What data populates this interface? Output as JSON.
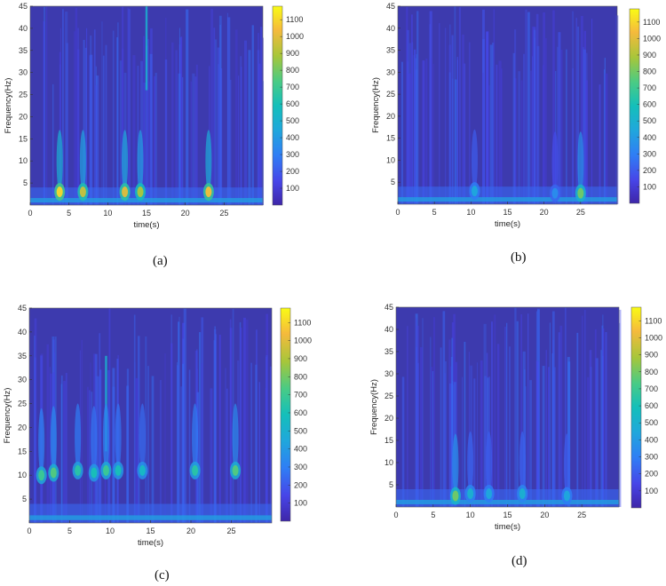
{
  "chart_data": [
    {
      "type": "heatmap",
      "panel_label": "(a)",
      "xlabel": "time(s)",
      "ylabel": "Frequency(Hz)",
      "xlim": [
        0,
        30
      ],
      "ylim": [
        0,
        45
      ],
      "x_ticks": [
        0,
        5,
        10,
        15,
        20,
        25
      ],
      "y_ticks": [
        5,
        10,
        15,
        20,
        25,
        30,
        35,
        40,
        45
      ],
      "colorbar": {
        "min": 0,
        "max": 1180,
        "ticks": [
          100,
          200,
          300,
          400,
          500,
          600,
          700,
          800,
          900,
          1000,
          1100
        ]
      },
      "colormap": "parula",
      "hotspots": [
        {
          "t": 3.8,
          "f": 3,
          "value": 1100
        },
        {
          "t": 6.8,
          "f": 3,
          "value": 950
        },
        {
          "t": 12.2,
          "f": 3,
          "value": 1000
        },
        {
          "t": 14.2,
          "f": 3,
          "value": 900
        },
        {
          "t": 23.0,
          "f": 3,
          "value": 1050
        }
      ]
    },
    {
      "type": "heatmap",
      "panel_label": "(b)",
      "xlabel": "time(s)",
      "ylabel": "Frequency(Hz)",
      "xlim": [
        0,
        30
      ],
      "ylim": [
        0,
        45
      ],
      "x_ticks": [
        0,
        5,
        10,
        15,
        20,
        25
      ],
      "y_ticks": [
        5,
        10,
        15,
        20,
        25,
        30,
        35,
        40,
        45
      ],
      "colorbar": {
        "min": 0,
        "max": 1180,
        "ticks": [
          100,
          200,
          300,
          400,
          500,
          600,
          700,
          800,
          900,
          1000,
          1100
        ]
      },
      "colormap": "parula",
      "hotspots": [
        {
          "t": 10.5,
          "f": 3,
          "value": 450
        },
        {
          "t": 25.0,
          "f": 2.5,
          "value": 800
        },
        {
          "t": 21.5,
          "f": 2.5,
          "value": 350
        }
      ]
    },
    {
      "type": "heatmap",
      "panel_label": "(c)",
      "xlabel": "time(s)",
      "ylabel": "Frequency(Hz)",
      "xlim": [
        0,
        30
      ],
      "ylim": [
        0,
        45
      ],
      "x_ticks": [
        0,
        5,
        10,
        15,
        20,
        25
      ],
      "y_ticks": [
        5,
        10,
        15,
        20,
        25,
        30,
        35,
        40,
        45
      ],
      "colorbar": {
        "min": 0,
        "max": 1180,
        "ticks": [
          100,
          200,
          300,
          400,
          500,
          600,
          700,
          800,
          900,
          1000,
          1100
        ]
      },
      "colormap": "parula",
      "hotspots": [
        {
          "t": 1.5,
          "f": 10,
          "value": 700
        },
        {
          "t": 3.0,
          "f": 10.5,
          "value": 750
        },
        {
          "t": 6.0,
          "f": 11,
          "value": 650
        },
        {
          "t": 8.0,
          "f": 10.5,
          "value": 600
        },
        {
          "t": 9.5,
          "f": 11,
          "value": 700
        },
        {
          "t": 11.0,
          "f": 11,
          "value": 600
        },
        {
          "t": 14.0,
          "f": 11,
          "value": 550
        },
        {
          "t": 20.5,
          "f": 11,
          "value": 650
        },
        {
          "t": 25.5,
          "f": 11,
          "value": 750
        }
      ]
    },
    {
      "type": "heatmap",
      "panel_label": "(d)",
      "xlabel": "time(s)",
      "ylabel": "Frequency(Hz)",
      "xlim": [
        0,
        30
      ],
      "ylim": [
        0,
        45
      ],
      "x_ticks": [
        0,
        5,
        10,
        15,
        20,
        25
      ],
      "y_ticks": [
        5,
        10,
        15,
        20,
        25,
        30,
        35,
        40,
        45
      ],
      "colorbar": {
        "min": 0,
        "max": 1180,
        "ticks": [
          100,
          200,
          300,
          400,
          500,
          600,
          700,
          800,
          900,
          1000,
          1100
        ]
      },
      "colormap": "parula",
      "hotspots": [
        {
          "t": 8.0,
          "f": 2.5,
          "value": 800
        },
        {
          "t": 10.0,
          "f": 3,
          "value": 500
        },
        {
          "t": 12.5,
          "f": 3,
          "value": 450
        },
        {
          "t": 17.0,
          "f": 3,
          "value": 500
        },
        {
          "t": 23.0,
          "f": 2.5,
          "value": 450
        }
      ]
    }
  ]
}
